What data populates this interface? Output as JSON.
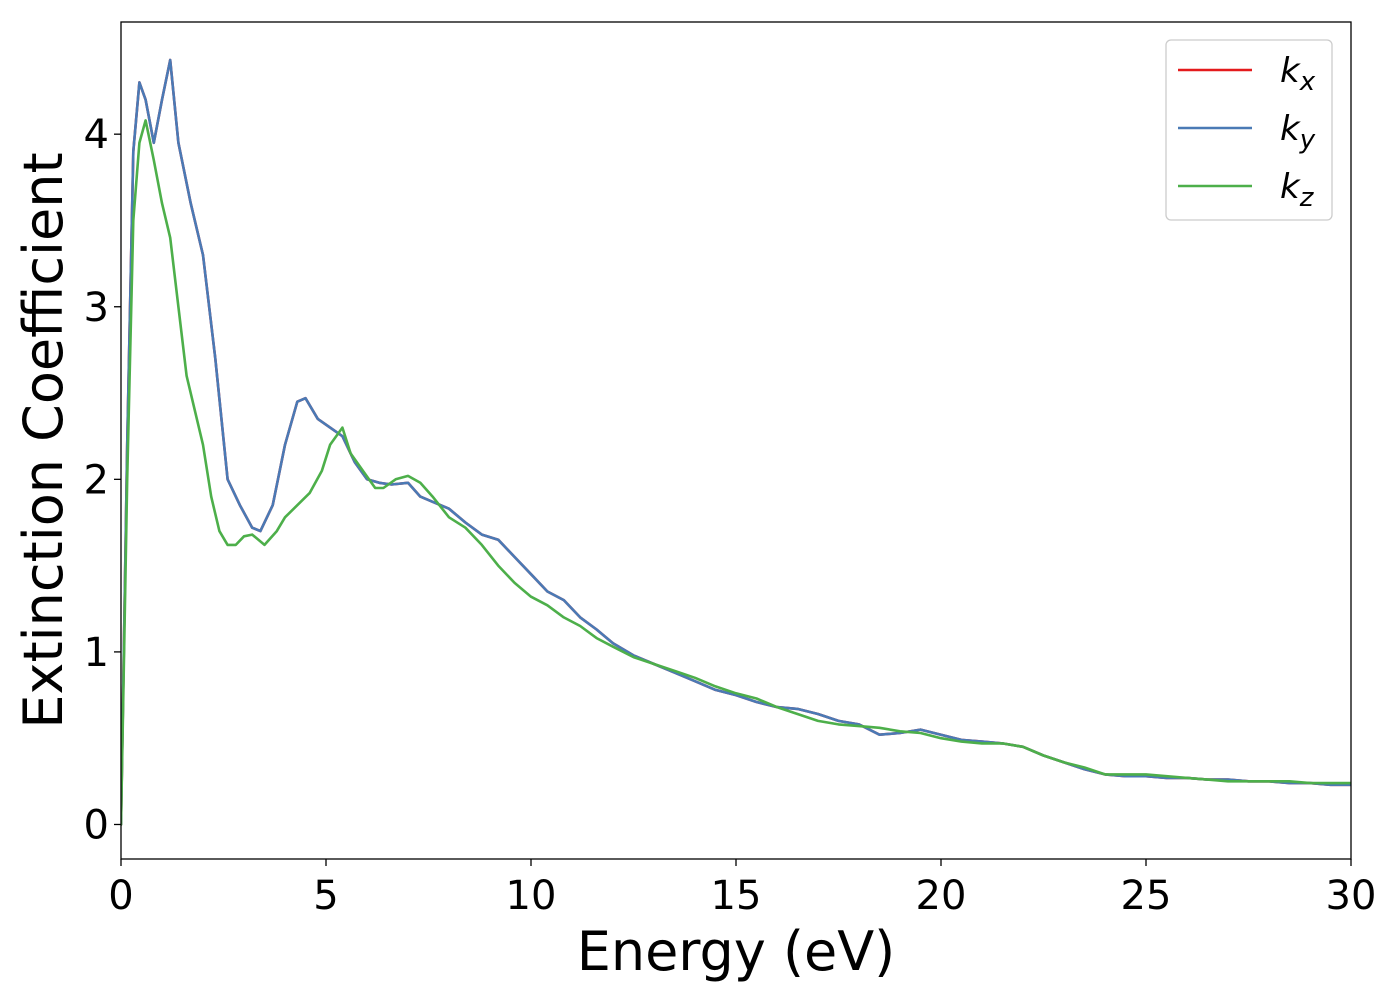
{
  "chart_data": {
    "type": "line",
    "title": "",
    "xlabel": "Energy (eV)",
    "ylabel": "Extinction Coefficient",
    "xlim": [
      0,
      30
    ],
    "ylim": [
      -0.2,
      4.65
    ],
    "xticks": [
      0,
      5,
      10,
      15,
      20,
      25,
      30
    ],
    "yticks": [
      0,
      1,
      2,
      3,
      4
    ],
    "grid": false,
    "legend_position": "top-right",
    "series": [
      {
        "name": "k_x",
        "legend_main": "k",
        "legend_sub": "x",
        "color": "#e41a1c",
        "x": [
          0,
          0.15,
          0.3,
          0.45,
          0.6,
          0.8,
          1.0,
          1.2,
          1.4,
          1.7,
          2.0,
          2.3,
          2.6,
          2.9,
          3.2,
          3.4,
          3.7,
          4.0,
          4.3,
          4.5,
          4.8,
          5.1,
          5.4,
          5.7,
          6.0,
          6.3,
          6.6,
          7.0,
          7.3,
          7.6,
          8.0,
          8.4,
          8.8,
          9.2,
          9.6,
          10.0,
          10.4,
          10.8,
          11.2,
          11.6,
          12.0,
          12.5,
          13.0,
          13.5,
          14.0,
          14.5,
          15.0,
          15.5,
          16.0,
          16.5,
          17.0,
          17.5,
          18.0,
          18.5,
          19.0,
          19.5,
          20.0,
          20.5,
          21.0,
          21.5,
          22.0,
          22.5,
          23.0,
          23.5,
          24.0,
          24.5,
          25.0,
          25.5,
          26.0,
          26.5,
          27.0,
          27.5,
          28.0,
          28.5,
          29.0,
          29.5,
          30.0
        ],
        "y": [
          0.0,
          2.2,
          3.9,
          4.3,
          4.2,
          3.95,
          4.2,
          4.43,
          3.95,
          3.6,
          3.3,
          2.7,
          2.0,
          1.85,
          1.72,
          1.7,
          1.85,
          2.2,
          2.45,
          2.47,
          2.35,
          2.3,
          2.25,
          2.1,
          2.0,
          1.98,
          1.97,
          1.98,
          1.9,
          1.87,
          1.83,
          1.75,
          1.68,
          1.65,
          1.55,
          1.45,
          1.35,
          1.3,
          1.2,
          1.13,
          1.05,
          0.98,
          0.93,
          0.88,
          0.83,
          0.78,
          0.75,
          0.71,
          0.68,
          0.67,
          0.64,
          0.6,
          0.58,
          0.52,
          0.53,
          0.55,
          0.52,
          0.49,
          0.48,
          0.47,
          0.45,
          0.4,
          0.36,
          0.32,
          0.29,
          0.28,
          0.28,
          0.27,
          0.27,
          0.26,
          0.26,
          0.25,
          0.25,
          0.24,
          0.24,
          0.23,
          0.23
        ]
      },
      {
        "name": "k_y",
        "legend_main": "k",
        "legend_sub": "y",
        "color": "#4a7ab5",
        "x": [
          0,
          0.15,
          0.3,
          0.45,
          0.6,
          0.8,
          1.0,
          1.2,
          1.4,
          1.7,
          2.0,
          2.3,
          2.6,
          2.9,
          3.2,
          3.4,
          3.7,
          4.0,
          4.3,
          4.5,
          4.8,
          5.1,
          5.4,
          5.7,
          6.0,
          6.3,
          6.6,
          7.0,
          7.3,
          7.6,
          8.0,
          8.4,
          8.8,
          9.2,
          9.6,
          10.0,
          10.4,
          10.8,
          11.2,
          11.6,
          12.0,
          12.5,
          13.0,
          13.5,
          14.0,
          14.5,
          15.0,
          15.5,
          16.0,
          16.5,
          17.0,
          17.5,
          18.0,
          18.5,
          19.0,
          19.5,
          20.0,
          20.5,
          21.0,
          21.5,
          22.0,
          22.5,
          23.0,
          23.5,
          24.0,
          24.5,
          25.0,
          25.5,
          26.0,
          26.5,
          27.0,
          27.5,
          28.0,
          28.5,
          29.0,
          29.5,
          30.0
        ],
        "y": [
          0.0,
          2.2,
          3.9,
          4.3,
          4.2,
          3.95,
          4.2,
          4.43,
          3.95,
          3.6,
          3.3,
          2.7,
          2.0,
          1.85,
          1.72,
          1.7,
          1.85,
          2.2,
          2.45,
          2.47,
          2.35,
          2.3,
          2.25,
          2.1,
          2.0,
          1.98,
          1.97,
          1.98,
          1.9,
          1.87,
          1.83,
          1.75,
          1.68,
          1.65,
          1.55,
          1.45,
          1.35,
          1.3,
          1.2,
          1.13,
          1.05,
          0.98,
          0.93,
          0.88,
          0.83,
          0.78,
          0.75,
          0.71,
          0.68,
          0.67,
          0.64,
          0.6,
          0.58,
          0.52,
          0.53,
          0.55,
          0.52,
          0.49,
          0.48,
          0.47,
          0.45,
          0.4,
          0.36,
          0.32,
          0.29,
          0.28,
          0.28,
          0.27,
          0.27,
          0.26,
          0.26,
          0.25,
          0.25,
          0.24,
          0.24,
          0.23,
          0.23
        ]
      },
      {
        "name": "k_z",
        "legend_main": "k",
        "legend_sub": "z",
        "color": "#4daf4a",
        "x": [
          0,
          0.15,
          0.3,
          0.45,
          0.6,
          0.8,
          1.0,
          1.2,
          1.4,
          1.6,
          1.8,
          2.0,
          2.2,
          2.4,
          2.6,
          2.8,
          3.0,
          3.2,
          3.5,
          3.8,
          4.0,
          4.3,
          4.6,
          4.9,
          5.1,
          5.4,
          5.6,
          5.9,
          6.2,
          6.4,
          6.7,
          7.0,
          7.3,
          7.6,
          8.0,
          8.4,
          8.8,
          9.2,
          9.6,
          10.0,
          10.4,
          10.8,
          11.2,
          11.6,
          12.0,
          12.5,
          13.0,
          13.5,
          14.0,
          14.5,
          15.0,
          15.5,
          16.0,
          16.5,
          17.0,
          17.5,
          18.0,
          18.5,
          19.0,
          19.5,
          20.0,
          20.5,
          21.0,
          21.5,
          22.0,
          22.5,
          23.0,
          23.5,
          24.0,
          24.5,
          25.0,
          25.5,
          26.0,
          26.5,
          27.0,
          27.5,
          28.0,
          28.5,
          29.0,
          29.5,
          30.0
        ],
        "y": [
          0.0,
          2.0,
          3.5,
          3.95,
          4.08,
          3.85,
          3.6,
          3.4,
          3.0,
          2.6,
          2.4,
          2.2,
          1.9,
          1.7,
          1.62,
          1.62,
          1.67,
          1.68,
          1.62,
          1.7,
          1.78,
          1.85,
          1.92,
          2.05,
          2.2,
          2.3,
          2.15,
          2.05,
          1.95,
          1.95,
          2.0,
          2.02,
          1.98,
          1.9,
          1.78,
          1.72,
          1.62,
          1.5,
          1.4,
          1.32,
          1.27,
          1.2,
          1.15,
          1.08,
          1.03,
          0.97,
          0.93,
          0.89,
          0.85,
          0.8,
          0.76,
          0.73,
          0.68,
          0.64,
          0.6,
          0.58,
          0.57,
          0.56,
          0.54,
          0.53,
          0.5,
          0.48,
          0.47,
          0.47,
          0.45,
          0.4,
          0.36,
          0.33,
          0.29,
          0.29,
          0.29,
          0.28,
          0.27,
          0.26,
          0.25,
          0.25,
          0.25,
          0.25,
          0.24,
          0.24,
          0.24
        ]
      }
    ]
  }
}
